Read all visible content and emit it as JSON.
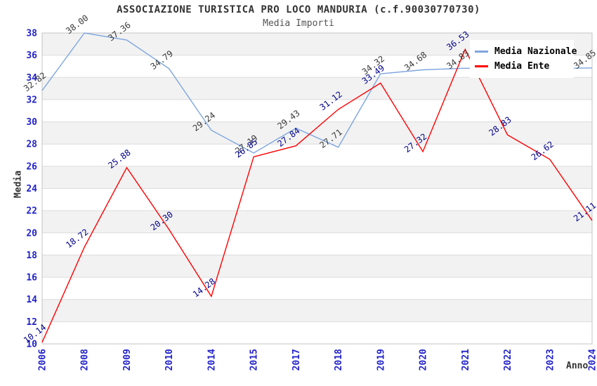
{
  "header": {
    "title": "ASSOCIAZIONE TURISTICA PRO LOCO MANDURIA (c.f.90030770730)",
    "subtitle": "Media Importi"
  },
  "legend": {
    "items": [
      {
        "label": "Media Nazionale",
        "color": "#7EA6DE"
      },
      {
        "label": "Media Ente",
        "color": "#FF0000"
      }
    ]
  },
  "axes": {
    "y_label": "Media",
    "x_label": "Anno",
    "y_ticks": [
      10,
      12,
      14,
      16,
      18,
      20,
      22,
      24,
      26,
      28,
      30,
      32,
      34,
      36,
      38
    ],
    "tick_color": "#2222CC"
  },
  "chart_data": {
    "type": "line",
    "title": "ASSOCIAZIONE TURISTICA PRO LOCO MANDURIA (c.f.90030770730)",
    "subtitle": "Media Importi",
    "xlabel": "Anno",
    "ylabel": "Media",
    "categories": [
      "2006",
      "2008",
      "2009",
      "2010",
      "2014",
      "2015",
      "2017",
      "2018",
      "2019",
      "2020",
      "2021",
      "2022",
      "2023",
      "2024"
    ],
    "series": [
      {
        "name": "Media Nazionale",
        "color": "#7EA6DE",
        "label_color": "#3A3A3A",
        "values": [
          32.82,
          38.0,
          37.36,
          34.79,
          29.24,
          27.19,
          29.43,
          27.71,
          34.32,
          34.68,
          34.83,
          34.75,
          34.8,
          34.85
        ],
        "point_labels": [
          "32.82",
          "38.00",
          "37.36",
          "34.79",
          "29.24",
          "27.19",
          "29.43",
          "27.71",
          "34.32",
          "34.68",
          "34.83",
          null,
          null,
          "34.85"
        ]
      },
      {
        "name": "Media Ente",
        "color": "#FF0000",
        "label_color": "#00008B",
        "values": [
          10.14,
          18.72,
          25.88,
          20.3,
          14.28,
          26.85,
          27.84,
          31.12,
          33.49,
          27.32,
          36.53,
          28.83,
          26.62,
          21.11
        ],
        "point_labels": [
          "10.14",
          "18.72",
          "25.88",
          "20.30",
          "14.28",
          "26.85",
          "27.84",
          "31.12",
          "33.49",
          "27.32",
          "36.53",
          "28.83",
          "26.62",
          "21.11"
        ]
      }
    ],
    "ylim": [
      10,
      38
    ],
    "y_tick_step": 2,
    "legend_position": "top-right",
    "grid": "horizontal-bands",
    "band_color": "#F2F2F2",
    "gridline_color": "#DCDCDC",
    "border_color": "#C4C4C4",
    "data_label_rotation_deg": -37
  }
}
